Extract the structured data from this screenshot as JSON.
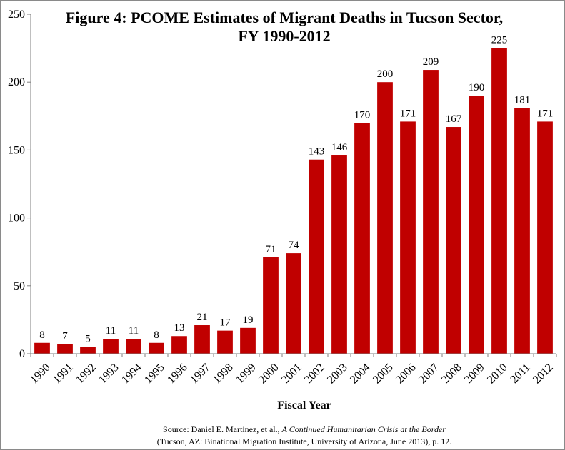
{
  "chart_data": {
    "type": "bar",
    "title_line1": "Figure 4: PCOME Estimates of Migrant Deaths in Tucson Sector,",
    "title_line2": "FY 1990-2012",
    "xlabel": "Fiscal Year",
    "ylabel": "",
    "ylim": [
      0,
      250
    ],
    "yticks": [
      0,
      50,
      100,
      150,
      200,
      250
    ],
    "categories": [
      "1990",
      "1991",
      "1992",
      "1993",
      "1994",
      "1995",
      "1996",
      "1997",
      "1998",
      "1999",
      "2000",
      "2001",
      "2002",
      "2003",
      "2004",
      "2005",
      "2006",
      "2007",
      "2008",
      "2009",
      "2010",
      "2011",
      "2012"
    ],
    "values": [
      8,
      7,
      5,
      11,
      11,
      8,
      13,
      21,
      17,
      19,
      71,
      74,
      143,
      146,
      170,
      200,
      171,
      209,
      167,
      190,
      225,
      181,
      171
    ],
    "bar_color": "#c00000",
    "grid": false,
    "legend": "none"
  },
  "source": {
    "prefix": "Source: Daniel E. Martinez, et al., ",
    "title": "A Continued Humanitarian Crisis at the Border",
    "line2": "(Tucson, AZ: Binational Migration Institute, University of Arizona, June 2013), p. 12."
  }
}
